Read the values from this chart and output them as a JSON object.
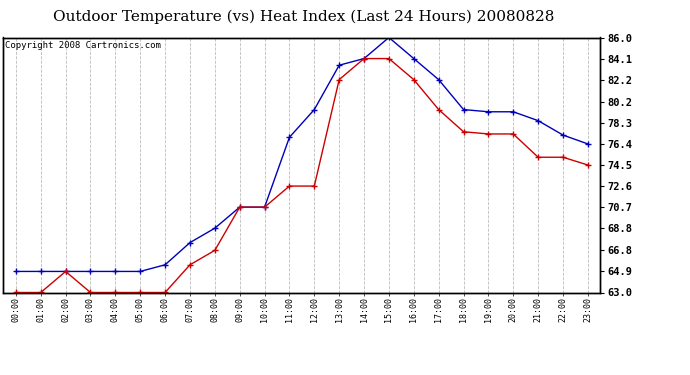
{
  "title": "Outdoor Temperature (vs) Heat Index (Last 24 Hours) 20080828",
  "copyright": "Copyright 2008 Cartronics.com",
  "x_labels": [
    "00:00",
    "01:00",
    "02:00",
    "03:00",
    "04:00",
    "05:00",
    "06:00",
    "07:00",
    "08:00",
    "09:00",
    "10:00",
    "11:00",
    "12:00",
    "13:00",
    "14:00",
    "15:00",
    "16:00",
    "17:00",
    "18:00",
    "19:00",
    "20:00",
    "21:00",
    "22:00",
    "23:00"
  ],
  "blue_values": [
    64.9,
    64.9,
    64.9,
    64.9,
    64.9,
    64.9,
    65.5,
    67.5,
    68.8,
    70.7,
    70.7,
    77.0,
    79.5,
    83.5,
    84.1,
    86.0,
    84.1,
    82.2,
    79.5,
    79.3,
    79.3,
    78.5,
    77.2,
    76.4
  ],
  "red_values": [
    63.0,
    63.0,
    64.9,
    63.0,
    63.0,
    63.0,
    63.0,
    65.5,
    66.8,
    70.7,
    70.7,
    72.6,
    72.6,
    82.2,
    84.1,
    84.1,
    82.2,
    79.5,
    77.5,
    77.3,
    77.3,
    75.2,
    75.2,
    74.5
  ],
  "ylim_min": 63.0,
  "ylim_max": 86.0,
  "yticks": [
    63.0,
    64.9,
    66.8,
    68.8,
    70.7,
    72.6,
    74.5,
    76.4,
    78.3,
    80.2,
    82.2,
    84.1,
    86.0
  ],
  "blue_color": "#0000bb",
  "red_color": "#cc0000",
  "bg_color": "#ffffff",
  "grid_color": "#bbbbbb",
  "title_fontsize": 11,
  "copyright_fontsize": 6.5
}
